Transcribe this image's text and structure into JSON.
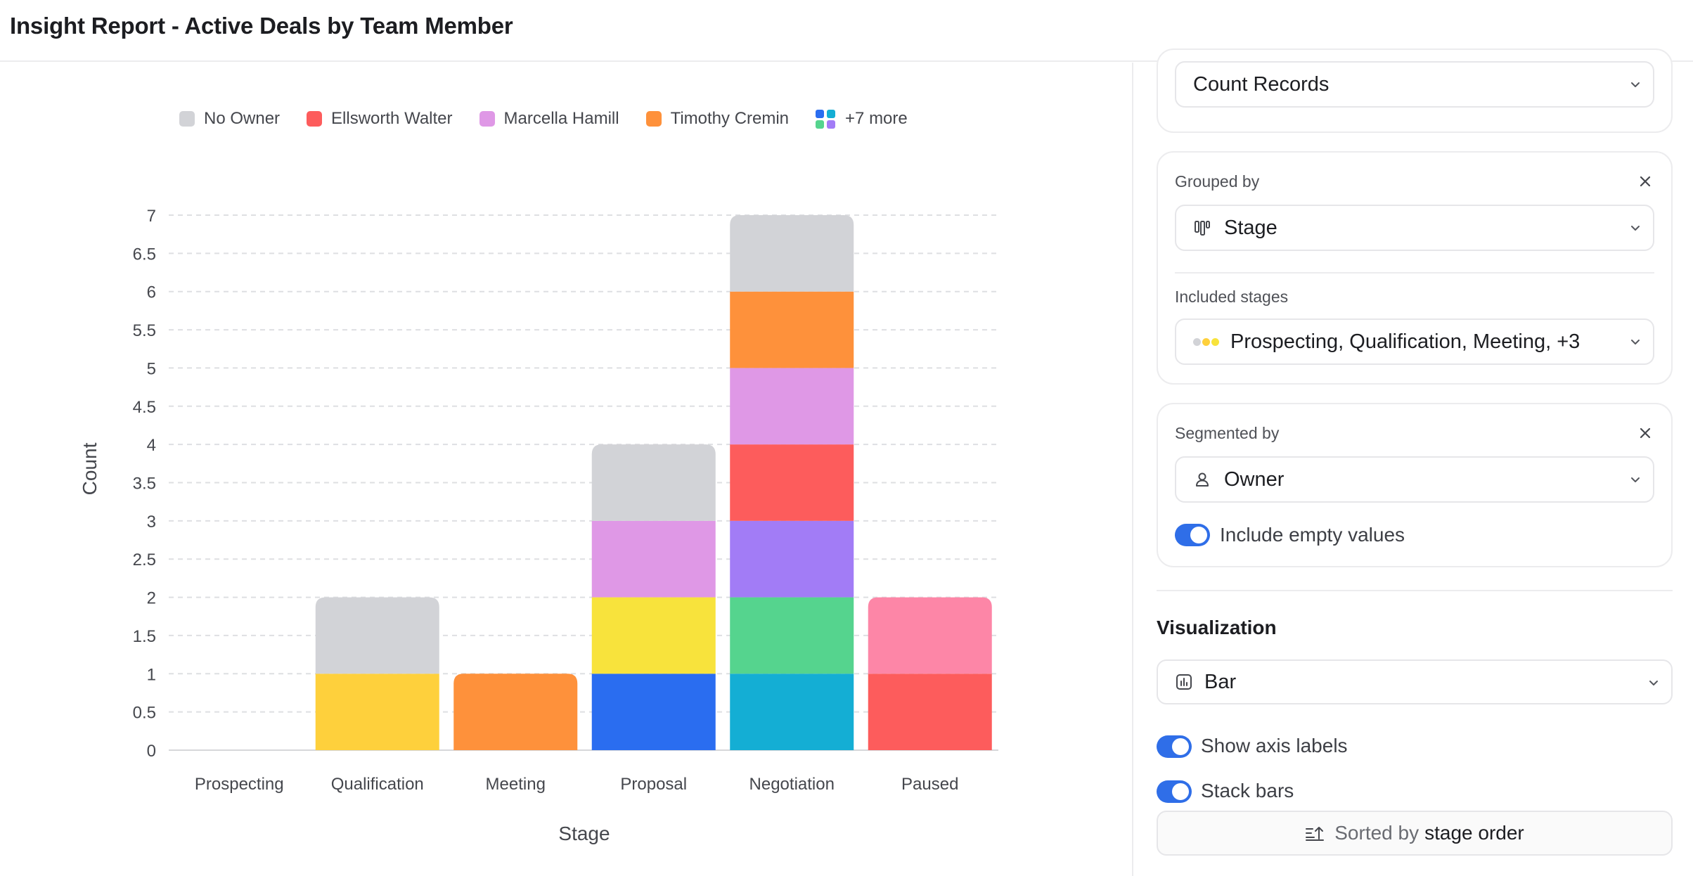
{
  "page": {
    "title": "Insight Report - Active Deals by Team Member"
  },
  "legend": {
    "items": [
      {
        "label": "No Owner",
        "color": "#d2d3d7"
      },
      {
        "label": "Ellsworth Walter",
        "color": "#fd5c5c"
      },
      {
        "label": "Marcella Hamill",
        "color": "#df98e6"
      },
      {
        "label": "Timothy Cremin",
        "color": "#fe913b"
      }
    ],
    "more_label": "+7 more",
    "more_icon_colors": [
      "#2a6df0",
      "#14aed4",
      "#55d48e",
      "#a27cf6"
    ]
  },
  "chart_data": {
    "type": "bar",
    "stacked": true,
    "categories": [
      "Prospecting",
      "Qualification",
      "Meeting",
      "Proposal",
      "Negotiation",
      "Paused"
    ],
    "xlabel": "Stage",
    "ylabel": "Count",
    "ylim": [
      0,
      7
    ],
    "yticks": [
      "0",
      "0.5",
      "1",
      "1.5",
      "2",
      "2.5",
      "3",
      "3.5",
      "4",
      "4.5",
      "5",
      "5.5",
      "6",
      "6.5",
      "7"
    ],
    "grid": true,
    "legend_position": "top",
    "stacks": [
      [],
      [
        {
          "value": 1,
          "color": "#fed03c"
        },
        {
          "value": 1,
          "color": "#d2d3d7",
          "series": "No Owner"
        }
      ],
      [
        {
          "value": 1,
          "color": "#fe913b",
          "series": "Timothy Cremin"
        }
      ],
      [
        {
          "value": 1,
          "color": "#2a6df0"
        },
        {
          "value": 1,
          "color": "#f8e33c"
        },
        {
          "value": 1,
          "color": "#df98e6",
          "series": "Marcella Hamill"
        },
        {
          "value": 1,
          "color": "#d2d3d7",
          "series": "No Owner"
        }
      ],
      [
        {
          "value": 1,
          "color": "#14aed4"
        },
        {
          "value": 1,
          "color": "#55d48e"
        },
        {
          "value": 1,
          "color": "#a27cf6"
        },
        {
          "value": 1,
          "color": "#fd5c5c",
          "series": "Ellsworth Walter"
        },
        {
          "value": 1,
          "color": "#df98e6",
          "series": "Marcella Hamill"
        },
        {
          "value": 1,
          "color": "#fe913b",
          "series": "Timothy Cremin"
        },
        {
          "value": 1,
          "color": "#d2d3d7",
          "series": "No Owner"
        }
      ],
      [
        {
          "value": 1,
          "color": "#fd5c5c",
          "series": "Ellsworth Walter"
        },
        {
          "value": 1,
          "color": "#fd86a7"
        }
      ]
    ]
  },
  "panel": {
    "measure": {
      "value": "Count Records"
    },
    "grouped": {
      "label": "Grouped by",
      "value": "Stage",
      "icon": "stage-columns-icon",
      "included_label": "Included stages",
      "included_value": "Prospecting, Qualification, Meeting, +3",
      "included_icon_colors": [
        "#d2d3d7",
        "#fed03c",
        "#f8e33c"
      ]
    },
    "segmented": {
      "label": "Segmented by",
      "value": "Owner",
      "icon": "person-icon",
      "toggle_label": "Include empty values",
      "toggle_on": true
    },
    "visualization": {
      "title": "Visualization",
      "value": "Bar",
      "icon": "bar-chart-icon",
      "show_axis_labels": "Show axis labels",
      "show_axis_on": true,
      "stack_bars": "Stack bars",
      "stack_on": true,
      "sort_prefix": "Sorted by",
      "sort_value": "stage order"
    },
    "accent": "#2f6ee8"
  }
}
